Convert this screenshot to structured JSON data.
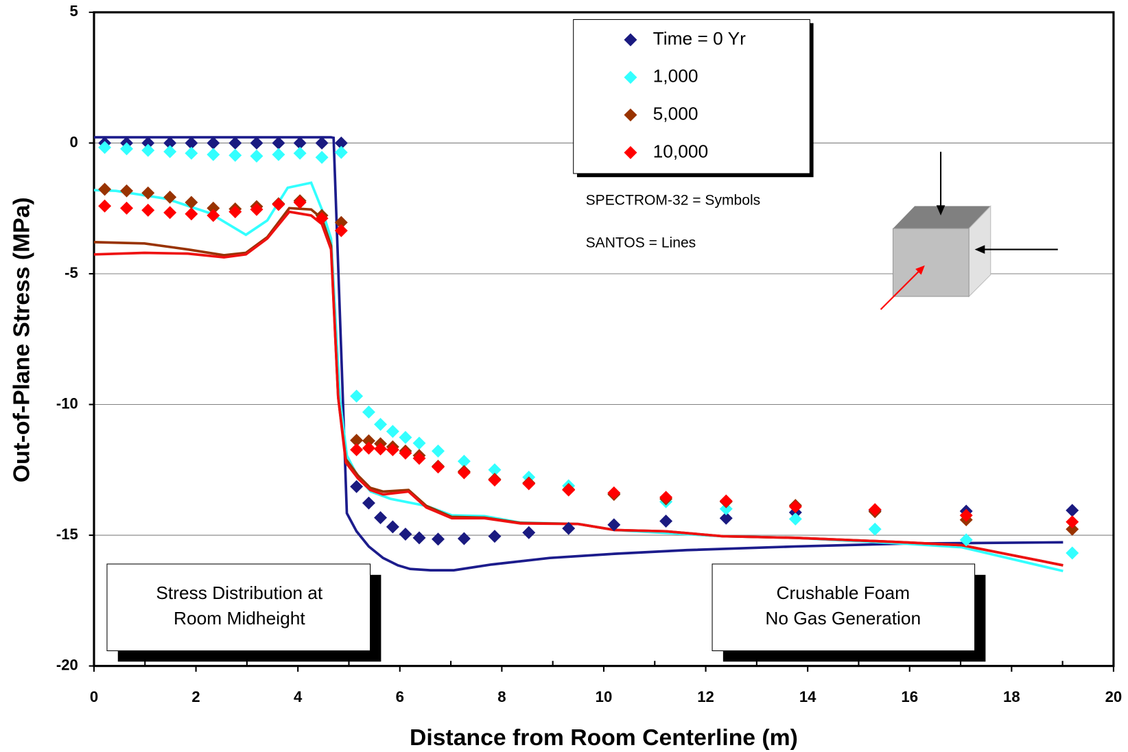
{
  "chart_data": {
    "type": "scatter",
    "xlabel": "Distance from Room Centerline (m)",
    "ylabel": "Out-of-Plane Stress (MPa)",
    "xlim": [
      0,
      20
    ],
    "ylim": [
      -20,
      5
    ],
    "xticks": [
      0,
      2,
      4,
      6,
      8,
      10,
      12,
      14,
      16,
      18,
      20
    ],
    "yticks": [
      5,
      0,
      -5,
      -10,
      -15,
      -20
    ],
    "grid": true,
    "annotations": [
      "SPECTROM-32 = Symbols",
      "SANTOS = Lines"
    ],
    "text_boxes": [
      [
        "Stress Distribution at",
        "Room Midheight"
      ],
      [
        "Crushable Foam",
        "No Gas Generation"
      ]
    ],
    "series": [
      {
        "name": "Time = 0 Yr",
        "color": "#1a1a80",
        "x": [
          0.21,
          0.64,
          1.06,
          1.49,
          1.91,
          2.34,
          2.77,
          3.19,
          3.62,
          4.04,
          4.47,
          4.85,
          5.15,
          5.39,
          5.62,
          5.86,
          6.11,
          6.38,
          6.75,
          7.26,
          7.86,
          8.53,
          9.31,
          10.2,
          11.22,
          12.4,
          13.76,
          15.32,
          17.11,
          19.19
        ],
        "values": [
          0,
          0,
          0,
          0,
          0,
          0,
          0,
          0,
          0,
          0,
          0,
          0,
          -13.14,
          -13.77,
          -14.33,
          -14.68,
          -14.96,
          -15.1,
          -15.15,
          -15.13,
          -15.04,
          -14.9,
          -14.74,
          -14.6,
          -14.46,
          -14.35,
          -14.13,
          -14.05,
          -14.08,
          -14.05
        ]
      },
      {
        "name": "1,000",
        "color": "#33ffff",
        "x": [
          0.21,
          0.64,
          1.06,
          1.49,
          1.91,
          2.34,
          2.77,
          3.19,
          3.62,
          4.04,
          4.47,
          4.85,
          5.15,
          5.39,
          5.62,
          5.86,
          6.11,
          6.38,
          6.75,
          7.26,
          7.86,
          8.53,
          9.31,
          10.2,
          11.22,
          12.4,
          13.76,
          15.32,
          17.11,
          19.19
        ],
        "values": [
          -0.17,
          -0.22,
          -0.28,
          -0.33,
          -0.39,
          -0.44,
          -0.47,
          -0.5,
          -0.44,
          -0.39,
          -0.55,
          -0.36,
          -9.68,
          -10.29,
          -10.76,
          -11.03,
          -11.26,
          -11.48,
          -11.78,
          -12.17,
          -12.5,
          -12.78,
          -13.11,
          -13.41,
          -13.72,
          -13.99,
          -14.38,
          -14.77,
          -15.18,
          -15.68
        ]
      },
      {
        "name": "5,000",
        "color": "#993300",
        "x": [
          0.21,
          0.64,
          1.06,
          1.49,
          1.91,
          2.34,
          2.77,
          3.19,
          3.62,
          4.04,
          4.47,
          4.85,
          5.15,
          5.39,
          5.62,
          5.86,
          6.11,
          6.38,
          6.75,
          7.26,
          7.86,
          8.53,
          9.31,
          10.2,
          11.22,
          12.4,
          13.76,
          15.32,
          17.11,
          19.19
        ],
        "values": [
          -1.77,
          -1.83,
          -1.91,
          -2.07,
          -2.27,
          -2.49,
          -2.52,
          -2.43,
          -2.32,
          -2.21,
          -2.77,
          -3.04,
          -11.37,
          -11.39,
          -11.5,
          -11.62,
          -11.78,
          -11.95,
          -12.36,
          -12.56,
          -12.86,
          -13.0,
          -13.25,
          -13.44,
          -13.61,
          -13.72,
          -13.86,
          -14.1,
          -14.41,
          -14.77
        ]
      },
      {
        "name": "10,000",
        "color": "#ff0000",
        "x": [
          0.21,
          0.64,
          1.06,
          1.49,
          1.91,
          2.34,
          2.77,
          3.19,
          3.62,
          4.04,
          4.47,
          4.85,
          5.15,
          5.39,
          5.62,
          5.86,
          6.11,
          6.38,
          6.75,
          7.26,
          7.86,
          8.53,
          9.31,
          10.2,
          11.22,
          12.4,
          13.76,
          15.32,
          17.11,
          19.19
        ],
        "values": [
          -2.41,
          -2.49,
          -2.57,
          -2.66,
          -2.71,
          -2.77,
          -2.63,
          -2.54,
          -2.35,
          -2.27,
          -2.88,
          -3.35,
          -11.73,
          -11.67,
          -11.7,
          -11.73,
          -11.86,
          -12.06,
          -12.39,
          -12.61,
          -12.89,
          -13.03,
          -13.27,
          -13.38,
          -13.55,
          -13.69,
          -13.91,
          -14.02,
          -14.24,
          -14.49
        ]
      }
    ],
    "line_series": [
      {
        "color": "#1c1c8c",
        "x": [
          0,
          4.65,
          4.7,
          4.85,
          4.96,
          5.15,
          5.39,
          5.67,
          5.96,
          6.2,
          6.6,
          7.06,
          7.8,
          8.94,
          10.21,
          11.63,
          13.76,
          15.89,
          19.01
        ],
        "values": [
          0.22,
          0.22,
          0.2,
          -8,
          -14.16,
          -14.85,
          -15.43,
          -15.87,
          -16.15,
          -16.29,
          -16.34,
          -16.34,
          -16.12,
          -15.87,
          -15.71,
          -15.57,
          -15.43,
          -15.32,
          -15.27
        ]
      },
      {
        "color": "#33ffff",
        "x": [
          0,
          0.43,
          1.42,
          2.27,
          2.98,
          3.4,
          3.8,
          4.26,
          4.47,
          4.65,
          4.82,
          4.96,
          5.18,
          5.43,
          5.82,
          6.52,
          7.02,
          7.66,
          8.37,
          9.5,
          10.21,
          12.34,
          13.76,
          15.89,
          17.02,
          19.01
        ],
        "values": [
          -1.8,
          -1.83,
          -2.13,
          -2.68,
          -3.51,
          -2.96,
          -1.71,
          -1.52,
          -2.54,
          -3.65,
          -9.73,
          -11.95,
          -12.78,
          -13.33,
          -13.61,
          -13.88,
          -14.24,
          -14.27,
          -14.52,
          -14.57,
          -14.8,
          -15.04,
          -15.1,
          -15.32,
          -15.46,
          -16.37
        ]
      },
      {
        "color": "#993300",
        "x": [
          0,
          0.99,
          1.84,
          2.55,
          2.98,
          3.4,
          3.83,
          4.26,
          4.47,
          4.65,
          4.79,
          4.94,
          5.18,
          5.42,
          5.67,
          6.17,
          6.52,
          7.02,
          7.66,
          8.37,
          9.5,
          10.21,
          11.21,
          12.34,
          13.76,
          15.89,
          17.02,
          19.01
        ],
        "values": [
          -3.79,
          -3.84,
          -4.07,
          -4.29,
          -4.2,
          -3.6,
          -2.49,
          -2.54,
          -2.88,
          -3.93,
          -9.73,
          -12.09,
          -12.72,
          -13.19,
          -13.33,
          -13.27,
          -13.88,
          -14.3,
          -14.33,
          -14.53,
          -14.57,
          -14.8,
          -14.85,
          -15.04,
          -15.1,
          -15.27,
          -15.38,
          -16.15
        ]
      },
      {
        "color": "#ee1111",
        "x": [
          0,
          0.99,
          1.84,
          2.55,
          2.98,
          3.4,
          3.83,
          4.26,
          4.47,
          4.65,
          4.79,
          4.94,
          5.18,
          5.42,
          5.67,
          6.17,
          6.52,
          7.02,
          7.66,
          8.37,
          9.5,
          10.21,
          11.21,
          12.34,
          13.76,
          15.89,
          17.02,
          19.01
        ],
        "values": [
          -4.26,
          -4.2,
          -4.23,
          -4.37,
          -4.26,
          -3.65,
          -2.63,
          -2.77,
          -3.1,
          -4.07,
          -9.73,
          -12.22,
          -12.83,
          -13.27,
          -13.44,
          -13.33,
          -13.94,
          -14.35,
          -14.35,
          -14.55,
          -14.57,
          -14.8,
          -14.85,
          -15.04,
          -15.1,
          -15.27,
          -15.38,
          -16.15
        ]
      }
    ]
  }
}
